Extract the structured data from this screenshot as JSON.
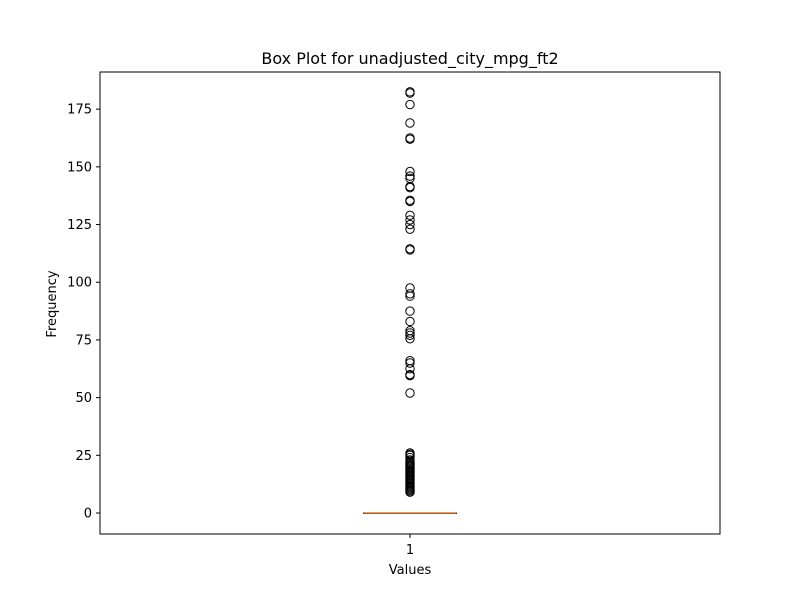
{
  "chart_data": {
    "type": "box",
    "title": "Box Plot for unadjusted_city_mpg_ft2",
    "xlabel": "Values",
    "ylabel": "Frequency",
    "categories": [
      "1"
    ],
    "ylim": [
      -9.1,
      191.1
    ],
    "yticks": [
      0,
      25,
      50,
      75,
      100,
      125,
      150,
      175
    ],
    "grid": false,
    "box": {
      "q1": 0,
      "median": 0,
      "q3": 0,
      "whisker_low": 0,
      "whisker_high": 0
    },
    "outliers": [
      9,
      9.5,
      10,
      10.5,
      11,
      11.5,
      12,
      12.5,
      13,
      13.5,
      14,
      14.5,
      15,
      15.5,
      16,
      16.5,
      17,
      17.5,
      18,
      18.5,
      19,
      19.5,
      20,
      20.5,
      21,
      21.5,
      22,
      23,
      24,
      25,
      25.5,
      26,
      52,
      59.5,
      60,
      62.5,
      65,
      66,
      75.5,
      77,
      78,
      79,
      83,
      87.5,
      94,
      95,
      97.5,
      114,
      114.5,
      123,
      125,
      127,
      129,
      135,
      135.5,
      141,
      141.5,
      145,
      146,
      148,
      162,
      162.5,
      169,
      177,
      182,
      182.5
    ],
    "colors": {
      "median": "#e07b39",
      "box": "#000000",
      "outlier": "#000000"
    }
  }
}
